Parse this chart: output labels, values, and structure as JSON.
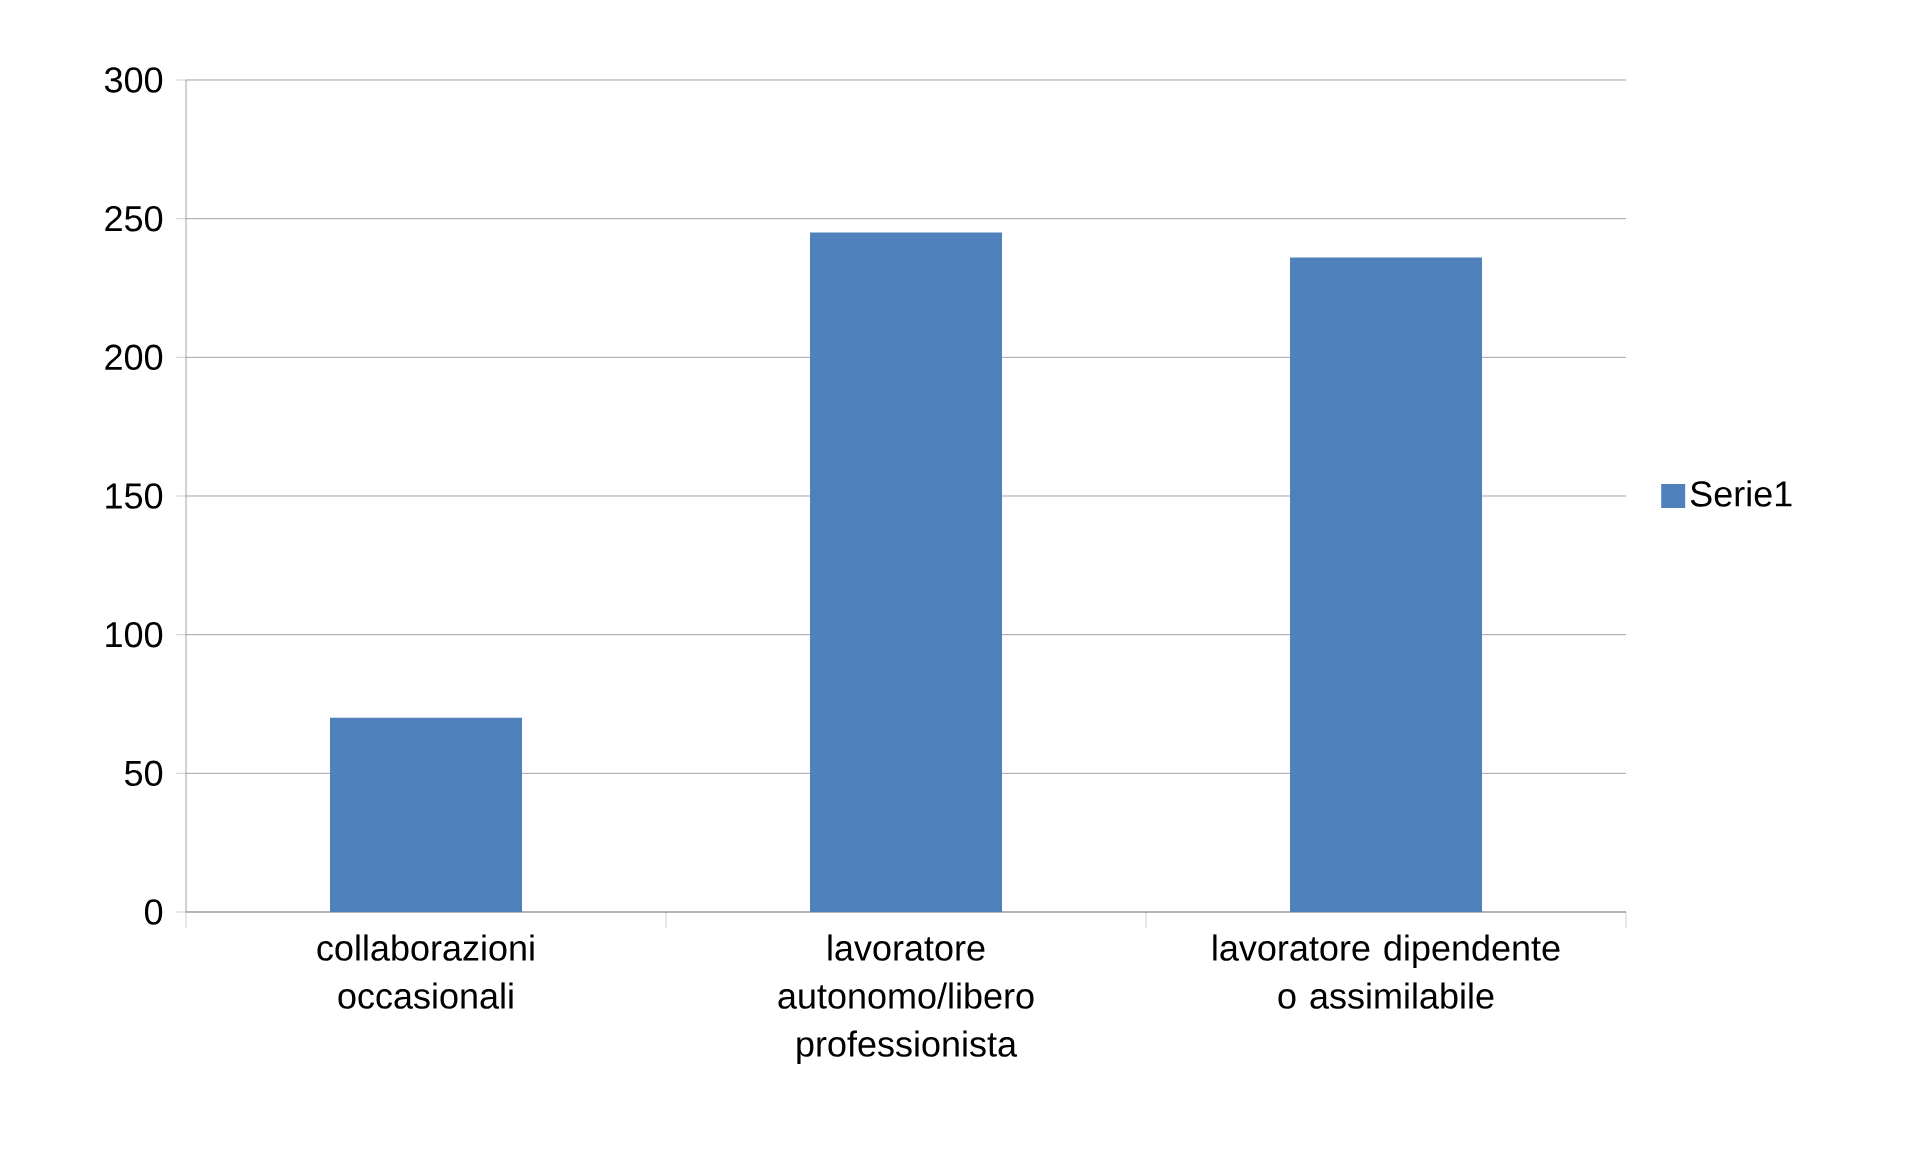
{
  "chart_data": {
    "type": "bar",
    "categories": [
      "collaborazioni occasionali",
      "lavoratore autonomo/libero professionista",
      "lavoratore dipendente o assimilabile"
    ],
    "series": [
      {
        "name": "Serie1",
        "color": "#4f81bd",
        "values": [
          70,
          245,
          236
        ]
      }
    ],
    "ylim": [
      0,
      300
    ],
    "yticks": [
      0,
      50,
      100,
      150,
      200,
      250,
      300
    ],
    "grid": "y",
    "legend": "right"
  }
}
